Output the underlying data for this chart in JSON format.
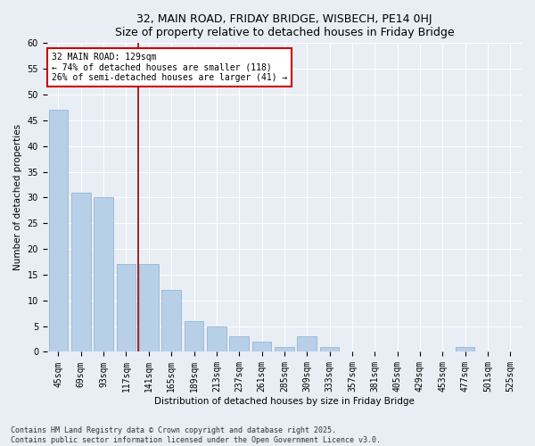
{
  "title1": "32, MAIN ROAD, FRIDAY BRIDGE, WISBECH, PE14 0HJ",
  "title2": "Size of property relative to detached houses in Friday Bridge",
  "xlabel": "Distribution of detached houses by size in Friday Bridge",
  "ylabel": "Number of detached properties",
  "categories": [
    "45sqm",
    "69sqm",
    "93sqm",
    "117sqm",
    "141sqm",
    "165sqm",
    "189sqm",
    "213sqm",
    "237sqm",
    "261sqm",
    "285sqm",
    "309sqm",
    "333sqm",
    "357sqm",
    "381sqm",
    "405sqm",
    "429sqm",
    "453sqm",
    "477sqm",
    "501sqm",
    "525sqm"
  ],
  "values": [
    47,
    31,
    30,
    17,
    17,
    12,
    6,
    5,
    3,
    2,
    1,
    3,
    1,
    0,
    0,
    0,
    0,
    0,
    1,
    0,
    0
  ],
  "bar_color": "#b8cfe8",
  "bar_edge_color": "#8aafd0",
  "vline_pos": 3.55,
  "vline_color": "#990000",
  "annotation_text": "32 MAIN ROAD: 129sqm\n← 74% of detached houses are smaller (118)\n26% of semi-detached houses are larger (41) →",
  "annotation_box_color": "#ffffff",
  "annotation_edge_color": "#cc0000",
  "ylim": [
    0,
    60
  ],
  "yticks": [
    0,
    5,
    10,
    15,
    20,
    25,
    30,
    35,
    40,
    45,
    50,
    55,
    60
  ],
  "footer": "Contains HM Land Registry data © Crown copyright and database right 2025.\nContains public sector information licensed under the Open Government Licence v3.0.",
  "bg_color": "#e8eef4",
  "plot_bg_color": "#e8eef4",
  "title_fontsize": 9,
  "axis_label_fontsize": 7.5,
  "tick_fontsize": 7,
  "annotation_fontsize": 7
}
